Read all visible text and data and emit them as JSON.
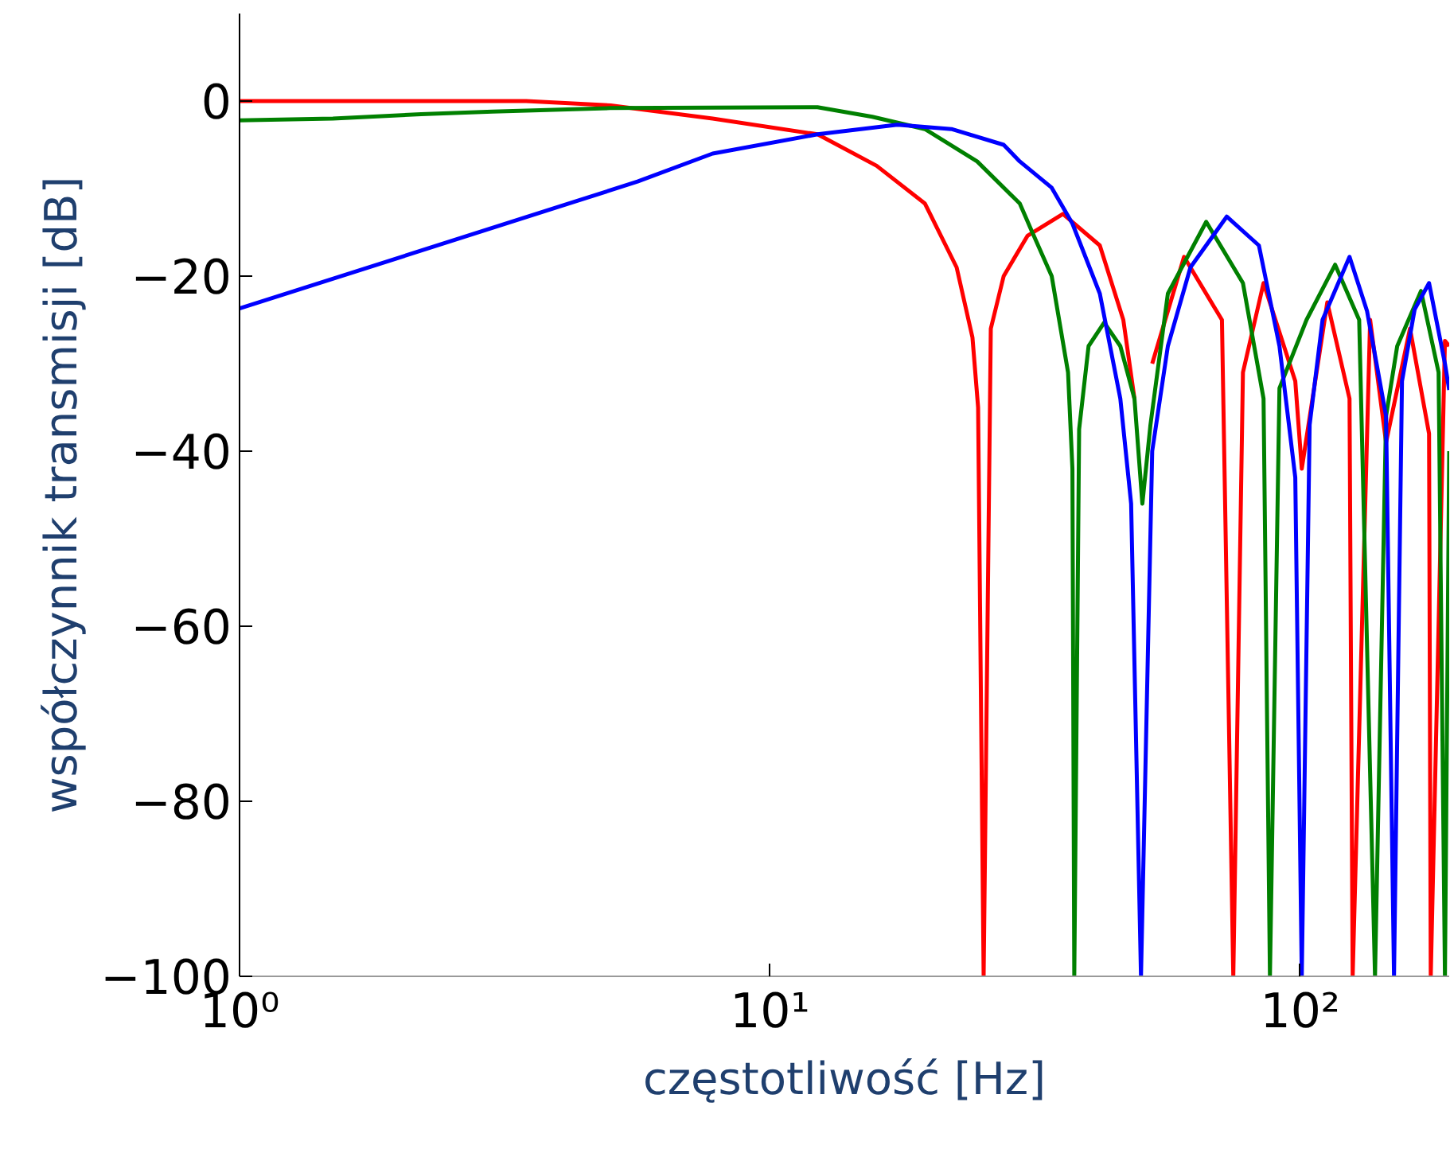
{
  "chart_data": {
    "type": "line",
    "xlabel": "częstotliwość [Hz]",
    "ylabel": "współczynnik transmisji [dB]",
    "log": "x",
    "grid": false,
    "xlim": [
      1,
      191
    ],
    "ylim": [
      -100,
      10
    ],
    "xticks": [
      {
        "value": 1,
        "label": "10⁰"
      },
      {
        "value": 10,
        "label": "10¹"
      },
      {
        "value": 100,
        "label": "10²"
      }
    ],
    "yticks": [
      -100,
      -80,
      -60,
      -40,
      -20,
      0
    ],
    "series": [
      {
        "color": "#ff0000",
        "x": [
          1,
          3.47,
          5.01,
          7.8,
          12.3,
          15.9,
          19.6,
          22.5,
          24.1,
          24.7,
          25.3,
          26.1,
          27.6,
          30.6,
          35.7,
          41.9,
          46.4,
          48.7,
          50.4,
          52.6,
          60.4,
          71.2,
          74.8,
          78.0,
          85.3,
          97.9,
          100.7,
          112.5,
          123.9,
          125.6,
          135.5,
          145.2,
          161.1,
          175.0,
          176.3,
          187.5,
          191
        ],
        "values": [
          0,
          0,
          -0.5,
          -2,
          -3.8,
          -7.4,
          -11.7,
          -19,
          -27,
          -35,
          -100,
          -26,
          -20,
          -15.4,
          -12.9,
          -16.5,
          -25,
          -34,
          null,
          -30,
          -17.8,
          -25,
          -100,
          -31,
          -20.8,
          -32,
          -42,
          -23,
          -34,
          -100,
          -25,
          -39,
          -26,
          -38,
          -100,
          -27.4,
          -28
        ]
      },
      {
        "color": "#008000",
        "x": [
          1,
          1.5,
          2.2,
          3,
          5,
          12.3,
          15.6,
          19.6,
          24.6,
          29.6,
          31.1,
          34.0,
          36.5,
          37.2,
          37.5,
          38.3,
          39.9,
          42.7,
          45.8,
          48.7,
          50.4,
          52.2,
          56.3,
          66.5,
          78.0,
          85.3,
          87.7,
          91.4,
          102.8,
          116.4,
          129.2,
          138.4,
          145.2,
          152.4,
          169.0,
          182.4,
          187.5,
          191
        ],
        "values": [
          -2.2,
          -2,
          -1.5,
          -1.2,
          -0.8,
          -0.7,
          -1.8,
          -3.2,
          -6.9,
          -11.7,
          -14.7,
          -20,
          -31,
          -42,
          -100,
          -37.5,
          -28,
          -25.3,
          -28,
          -34,
          -46,
          -37,
          -22,
          -13.8,
          -20.8,
          -34,
          -100,
          -32.8,
          -25,
          -18.7,
          -25,
          -100,
          -36,
          -28,
          -21.7,
          -31,
          -100,
          -40
        ]
      },
      {
        "color": "#0000ff",
        "x": [
          1,
          5.63,
          7.8,
          12.3,
          17.4,
          22.0,
          27.6,
          29.6,
          34.0,
          37.2,
          41.9,
          45.8,
          48.0,
          50.1,
          52.6,
          56.3,
          62.1,
          72.7,
          83.6,
          91.4,
          97.9,
          100.7,
          104.2,
          110.2,
          123.9,
          133.7,
          145.2,
          150.3,
          155.6,
          164.4,
          175.0,
          187.5,
          191
        ],
        "values": [
          -23.7,
          -9.2,
          -6,
          -3.8,
          -2.7,
          -3.2,
          -5,
          -6.9,
          -9.9,
          -14,
          -22,
          -34,
          -46,
          -100,
          -40,
          -28,
          -19,
          -13.2,
          -16.5,
          -28,
          -43,
          -100,
          -37,
          -25,
          -17.8,
          -24,
          -36,
          -100,
          -32,
          -23.8,
          -20.8,
          -30,
          -33
        ]
      }
    ]
  }
}
